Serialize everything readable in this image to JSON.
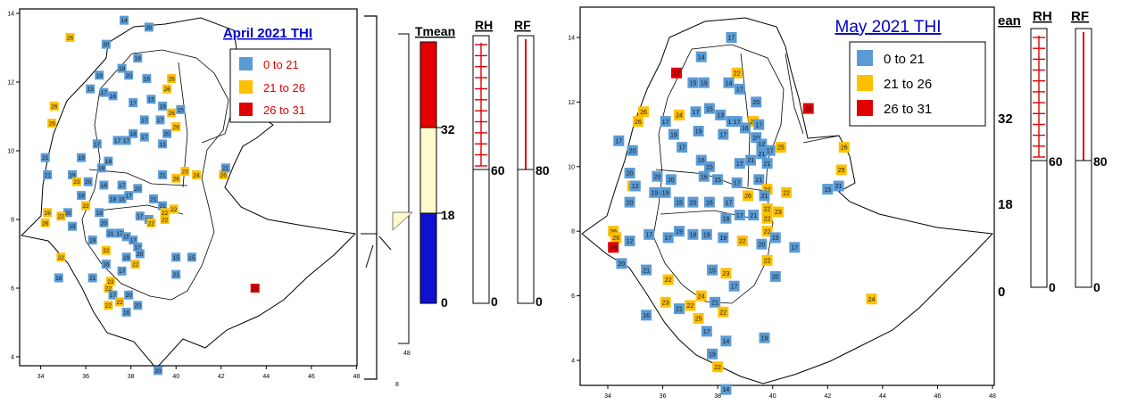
{
  "colors": {
    "low": "#5b9bd5",
    "mid": "#ffc000",
    "high": "#e00000",
    "frame": "#000000",
    "title": "#0000cc",
    "gauge_blue": "#1010d0",
    "gauge_cream": "#fffacd",
    "gauge_red": "#e60000"
  },
  "chart_data": [
    {
      "type": "scatter",
      "title": "April 2021 THI",
      "legend": {
        "placement": "top-right",
        "entries": [
          {
            "label": "0 to 21",
            "color": "low"
          },
          {
            "label": "21 to 26",
            "color": "mid"
          },
          {
            "label": "26 to 31",
            "color": "high"
          }
        ]
      },
      "xlim": [
        33,
        48
      ],
      "ylim": [
        3,
        15
      ],
      "x_ticks": [
        "34",
        "36",
        "38",
        "40",
        "42",
        "44",
        "46",
        "48"
      ],
      "y_ticks": [
        "4",
        "6",
        "8",
        "10",
        "12",
        "14"
      ],
      "points": [
        [
          37.7,
          13.8,
          14
        ],
        [
          38.8,
          13.6,
          20
        ],
        [
          36.9,
          13.1,
          20
        ],
        [
          35.3,
          13.3,
          26
        ],
        [
          38.3,
          12.7,
          18
        ],
        [
          37.6,
          12.4,
          18
        ],
        [
          36.6,
          12.2,
          19
        ],
        [
          37.9,
          12.2,
          20
        ],
        [
          38.7,
          12.1,
          16
        ],
        [
          39.6,
          11.8,
          26
        ],
        [
          39.8,
          12.1,
          26
        ],
        [
          36.2,
          11.8,
          15
        ],
        [
          36.8,
          11.7,
          17
        ],
        [
          37.2,
          11.6,
          16
        ],
        [
          38.1,
          11.4,
          17
        ],
        [
          38.9,
          11.5,
          15
        ],
        [
          39.4,
          11.3,
          19
        ],
        [
          40.2,
          11.2,
          15
        ],
        [
          39.8,
          11.1,
          26
        ],
        [
          34.6,
          11.3,
          26
        ],
        [
          34.5,
          10.8,
          26
        ],
        [
          38.6,
          10.9,
          17
        ],
        [
          39.3,
          10.9,
          17
        ],
        [
          38.1,
          10.5,
          18
        ],
        [
          39.6,
          10.5,
          20
        ],
        [
          40.0,
          10.7,
          26
        ],
        [
          37.4,
          10.3,
          17
        ],
        [
          37.8,
          10.3,
          17
        ],
        [
          38.6,
          10.4,
          17
        ],
        [
          39.4,
          10.2,
          13
        ],
        [
          36.5,
          10.2,
          17
        ],
        [
          35.8,
          9.8,
          19
        ],
        [
          37.0,
          9.7,
          18
        ],
        [
          36.7,
          9.5,
          18
        ],
        [
          35.4,
          9.3,
          19
        ],
        [
          35.6,
          9.1,
          23
        ],
        [
          36.1,
          9.1,
          20
        ],
        [
          36.8,
          9.0,
          16
        ],
        [
          37.6,
          9.0,
          17
        ],
        [
          38.3,
          8.9,
          20
        ],
        [
          39.4,
          9.3,
          21
        ],
        [
          40.0,
          9.2,
          26
        ],
        [
          40.4,
          9.4,
          23
        ],
        [
          40.9,
          9.3,
          24
        ],
        [
          42.1,
          9.3,
          26
        ],
        [
          42.2,
          9.5,
          21
        ],
        [
          34.2,
          9.8,
          21
        ],
        [
          34.3,
          9.3,
          21
        ],
        [
          35.8,
          8.7,
          18
        ],
        [
          36.0,
          8.4,
          22
        ],
        [
          35.2,
          8.2,
          20
        ],
        [
          35.4,
          7.8,
          19
        ],
        [
          34.3,
          8.2,
          26
        ],
        [
          34.2,
          7.9,
          26
        ],
        [
          34.9,
          8.1,
          22
        ],
        [
          36.6,
          8.2,
          19
        ],
        [
          37.2,
          8.6,
          18
        ],
        [
          37.6,
          8.6,
          16
        ],
        [
          37.9,
          8.7,
          17
        ],
        [
          39.0,
          8.6,
          21
        ],
        [
          39.4,
          8.4,
          21
        ],
        [
          39.5,
          8.2,
          22
        ],
        [
          39.5,
          8.0,
          22
        ],
        [
          39.9,
          8.3,
          22
        ],
        [
          38.4,
          8.1,
          17
        ],
        [
          38.8,
          8.0,
          20
        ],
        [
          36.8,
          7.9,
          20
        ],
        [
          37.1,
          7.6,
          21
        ],
        [
          36.3,
          7.4,
          19
        ],
        [
          36.9,
          7.1,
          22
        ],
        [
          37.5,
          7.6,
          17
        ],
        [
          37.8,
          7.5,
          15
        ],
        [
          38.1,
          7.4,
          17
        ],
        [
          38.3,
          7.2,
          17
        ],
        [
          38.9,
          7.9,
          22
        ],
        [
          38.4,
          7.0,
          20
        ],
        [
          37.8,
          6.9,
          19
        ],
        [
          37.6,
          6.5,
          17
        ],
        [
          38.2,
          6.7,
          22
        ],
        [
          37.1,
          6.2,
          23
        ],
        [
          37.0,
          6.0,
          22
        ],
        [
          37.2,
          5.8,
          17
        ],
        [
          37.5,
          5.6,
          22
        ],
        [
          37.9,
          5.8,
          20
        ],
        [
          37.8,
          5.3,
          16
        ],
        [
          37.0,
          5.5,
          22
        ],
        [
          36.3,
          6.3,
          21
        ],
        [
          34.9,
          6.9,
          22
        ],
        [
          34.8,
          6.3,
          16
        ],
        [
          40.0,
          6.9,
          15
        ],
        [
          40.7,
          6.9,
          15
        ],
        [
          40.0,
          6.4,
          21
        ],
        [
          43.5,
          6.0,
          28
        ],
        [
          36.9,
          6.7,
          16
        ],
        [
          38.3,
          5.5,
          20
        ],
        [
          39.2,
          3.6,
          20
        ]
      ]
    },
    {
      "type": "scatter",
      "title": "May 2021 THI",
      "legend": {
        "placement": "top-right",
        "entries": [
          {
            "label": "0 to 21",
            "color": "low"
          },
          {
            "label": "21 to 26",
            "color": "mid"
          },
          {
            "label": "26 to 31",
            "color": "high"
          }
        ]
      },
      "xlim": [
        33,
        48
      ],
      "ylim": [
        3,
        15
      ],
      "x_ticks": [
        "34",
        "36",
        "38",
        "40",
        "42",
        "44",
        "46",
        "48"
      ],
      "y_ticks": [
        "4",
        "6",
        "8",
        "10",
        "12",
        "14"
      ],
      "points": [
        [
          38.5,
          14.0,
          17
        ],
        [
          37.4,
          13.4,
          14
        ],
        [
          36.5,
          12.9,
          27
        ],
        [
          38.7,
          12.9,
          22
        ],
        [
          37.1,
          12.6,
          15
        ],
        [
          37.5,
          12.6,
          19
        ],
        [
          38.4,
          12.6,
          14
        ],
        [
          38.8,
          12.4,
          17
        ],
        [
          39.4,
          12.0,
          20
        ],
        [
          41.3,
          11.8,
          28
        ],
        [
          35.3,
          11.7,
          26
        ],
        [
          35.1,
          11.4,
          26
        ],
        [
          36.6,
          11.6,
          24
        ],
        [
          37.2,
          11.7,
          17
        ],
        [
          37.7,
          11.8,
          15
        ],
        [
          38.1,
          11.6,
          13
        ],
        [
          38.5,
          11.4,
          12
        ],
        [
          38.7,
          11.4,
          17
        ],
        [
          39.3,
          11.4,
          22
        ],
        [
          36.1,
          11.4,
          17
        ],
        [
          36.4,
          11.0,
          19
        ],
        [
          37.3,
          11.1,
          19
        ],
        [
          38.2,
          11.0,
          17
        ],
        [
          39.0,
          11.2,
          16
        ],
        [
          39.5,
          11.3,
          17
        ],
        [
          39.4,
          10.9,
          20
        ],
        [
          39.6,
          10.7,
          12
        ],
        [
          39.9,
          10.5,
          17
        ],
        [
          39.6,
          10.4,
          21
        ],
        [
          40.3,
          10.6,
          25
        ],
        [
          34.4,
          10.8,
          17
        ],
        [
          34.9,
          10.5,
          20
        ],
        [
          36.7,
          10.6,
          17
        ],
        [
          37.4,
          10.2,
          16
        ],
        [
          37.7,
          10.0,
          15
        ],
        [
          38.8,
          10.1,
          17
        ],
        [
          39.2,
          10.2,
          21
        ],
        [
          39.8,
          10.1,
          21
        ],
        [
          42.6,
          10.6,
          26
        ],
        [
          42.5,
          9.9,
          25
        ],
        [
          42.4,
          9.4,
          21
        ],
        [
          42.0,
          9.3,
          15
        ],
        [
          34.8,
          9.8,
          20
        ],
        [
          34.9,
          9.4,
          22
        ],
        [
          35.8,
          9.7,
          20
        ],
        [
          36.3,
          9.6,
          20
        ],
        [
          37.5,
          9.7,
          16
        ],
        [
          38.0,
          9.6,
          15
        ],
        [
          38.7,
          9.5,
          17
        ],
        [
          39.5,
          9.6,
          21
        ],
        [
          39.8,
          9.3,
          22
        ],
        [
          35.7,
          9.2,
          19
        ],
        [
          36.1,
          9.2,
          19
        ],
        [
          36.6,
          8.9,
          15
        ],
        [
          37.1,
          8.9,
          20
        ],
        [
          37.7,
          8.9,
          16
        ],
        [
          38.4,
          8.9,
          17
        ],
        [
          39.1,
          9.1,
          26
        ],
        [
          39.7,
          9.1,
          21
        ],
        [
          40.5,
          9.2,
          22
        ],
        [
          34.8,
          8.9,
          20
        ],
        [
          35.0,
          9.4,
          12
        ],
        [
          39.8,
          8.7,
          22
        ],
        [
          40.2,
          8.6,
          23
        ],
        [
          39.3,
          8.5,
          21
        ],
        [
          38.8,
          8.5,
          17
        ],
        [
          38.3,
          8.4,
          18
        ],
        [
          39.8,
          8.4,
          22
        ],
        [
          39.8,
          8.0,
          22
        ],
        [
          40.1,
          7.8,
          15
        ],
        [
          40.8,
          7.5,
          17
        ],
        [
          34.2,
          8.0,
          26
        ],
        [
          34.3,
          7.8,
          26
        ],
        [
          34.2,
          7.5,
          28
        ],
        [
          34.8,
          7.7,
          12
        ],
        [
          35.5,
          7.9,
          17
        ],
        [
          36.2,
          7.8,
          17
        ],
        [
          36.6,
          8.0,
          19
        ],
        [
          37.1,
          7.9,
          18
        ],
        [
          37.6,
          7.9,
          19
        ],
        [
          38.2,
          7.8,
          19
        ],
        [
          38.9,
          7.7,
          22
        ],
        [
          39.6,
          7.6,
          20
        ],
        [
          39.8,
          7.1,
          22
        ],
        [
          34.5,
          7.0,
          20
        ],
        [
          35.4,
          6.8,
          21
        ],
        [
          36.2,
          6.5,
          22
        ],
        [
          37.8,
          6.8,
          15
        ],
        [
          38.3,
          6.7,
          23
        ],
        [
          38.6,
          6.3,
          17
        ],
        [
          37.4,
          6.0,
          24
        ],
        [
          37.9,
          5.8,
          21
        ],
        [
          38.2,
          5.5,
          22
        ],
        [
          36.1,
          5.8,
          23
        ],
        [
          37.0,
          5.7,
          22
        ],
        [
          37.3,
          5.3,
          25
        ],
        [
          35.4,
          5.4,
          16
        ],
        [
          36.6,
          5.6,
          21
        ],
        [
          37.6,
          4.9,
          17
        ],
        [
          38.3,
          4.6,
          14
        ],
        [
          40.1,
          6.6,
          20
        ],
        [
          39.7,
          4.7,
          19
        ],
        [
          43.6,
          5.9,
          24
        ],
        [
          37.8,
          4.2,
          19
        ],
        [
          38.3,
          3.1,
          14
        ],
        [
          38.0,
          3.8,
          22
        ]
      ]
    }
  ],
  "gauges_left": {
    "tmean": {
      "label": "Tmean",
      "ticks": [
        "32",
        "18",
        "0"
      ],
      "bands": [
        [
          0,
          18
        ],
        [
          18,
          32
        ],
        [
          32,
          50
        ]
      ]
    },
    "rh": {
      "label": "RH",
      "tick": "60",
      "base": "0"
    },
    "rf": {
      "label": "RF",
      "tick": "80",
      "base": "0"
    }
  },
  "gauges_right": {
    "tmean": {
      "label": "ean",
      "ticks": [
        "32",
        "18",
        "0"
      ]
    },
    "rh": {
      "label": "RH",
      "tick": "60",
      "base": "0"
    },
    "rf": {
      "label": "RF",
      "tick": "80",
      "base": "0"
    }
  },
  "extra_ticks": {
    "a": "48",
    "b": "8"
  }
}
